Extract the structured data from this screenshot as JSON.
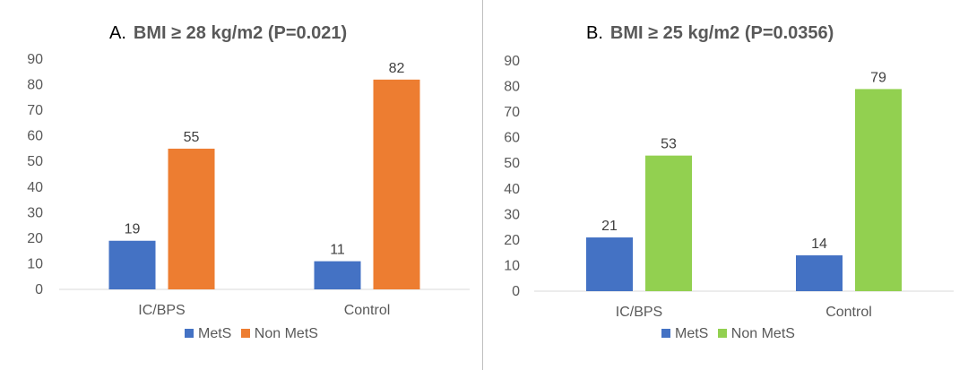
{
  "chart_data": [
    {
      "type": "bar",
      "panel_letter": "A.",
      "title": "BMI ≥ 28 kg/m2 (P=0.021)",
      "categories": [
        "IC/BPS",
        "Control"
      ],
      "series": [
        {
          "name": "MetS",
          "values": [
            19,
            11
          ],
          "color": "#4472C4"
        },
        {
          "name": "Non MetS",
          "values": [
            55,
            82
          ],
          "color": "#ED7D31"
        }
      ],
      "ylim": [
        0,
        90
      ],
      "yticks": [
        0,
        10,
        20,
        30,
        40,
        50,
        60,
        70,
        80,
        90
      ],
      "legend": "bottom",
      "grid": false
    },
    {
      "type": "bar",
      "panel_letter": "B.",
      "title": "BMI ≥ 25 kg/m2 (P=0.0356)",
      "categories": [
        "IC/BPS",
        "Control"
      ],
      "series": [
        {
          "name": "MetS",
          "values": [
            21,
            14
          ],
          "color": "#4472C4"
        },
        {
          "name": "Non MetS",
          "values": [
            53,
            79
          ],
          "color": "#92D050"
        }
      ],
      "ylim": [
        0,
        90
      ],
      "yticks": [
        0,
        10,
        20,
        30,
        40,
        50,
        60,
        70,
        80,
        90
      ],
      "legend": "bottom",
      "grid": false
    }
  ]
}
